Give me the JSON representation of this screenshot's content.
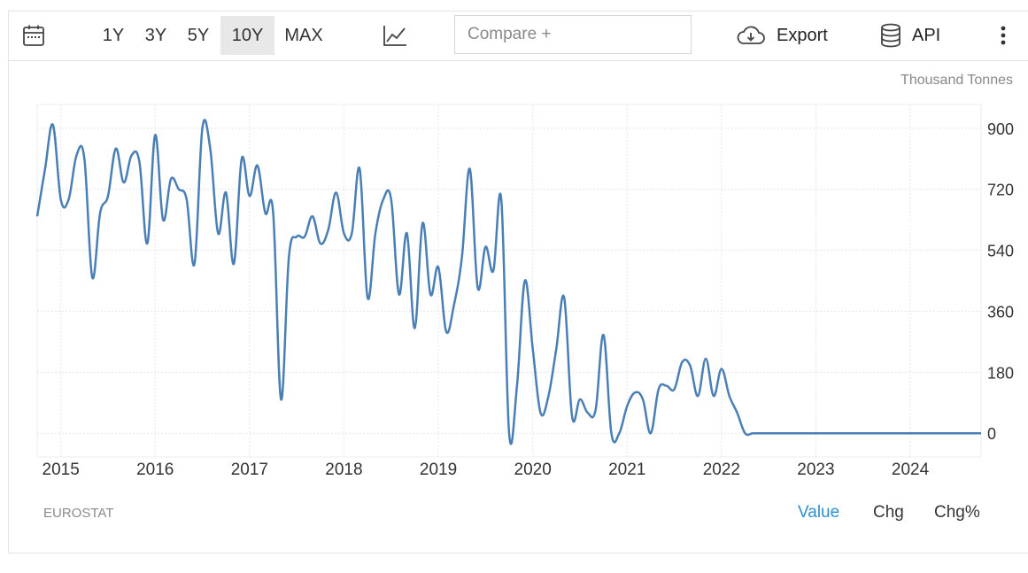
{
  "toolbar": {
    "calendar_icon": "calendar-icon",
    "ranges": [
      "1Y",
      "3Y",
      "5Y",
      "10Y",
      "MAX"
    ],
    "active_range": "10Y",
    "chart_type_icon": "line-chart-icon",
    "compare_placeholder": "Compare +",
    "export_label": "Export",
    "export_icon": "cloud-download-icon",
    "api_label": "API",
    "api_icon": "database-icon",
    "more_icon": "vertical-dots-icon"
  },
  "unit_label": "Thousand Tonnes",
  "source_label": "EUROSTAT",
  "modes": [
    "Value",
    "Chg",
    "Chg%"
  ],
  "active_mode": "Value",
  "colors": {
    "line": "#4a7fb5",
    "active_mode": "#2e8ece",
    "grid": "#e6e6e6"
  },
  "chart_data": {
    "type": "line",
    "title": "",
    "xlabel": "",
    "ylabel": "",
    "x_ticks": [
      "2015",
      "2016",
      "2017",
      "2018",
      "2019",
      "2020",
      "2021",
      "2022",
      "2023",
      "2024"
    ],
    "y_ticks": [
      0,
      180,
      360,
      540,
      720,
      900
    ],
    "ylim": [
      -70,
      970
    ],
    "xlim": [
      "2014-10",
      "2024-10"
    ],
    "grid": true,
    "legend": "none",
    "series": [
      {
        "x": [
          "2014-10",
          "2014-11",
          "2014-12",
          "2015-01",
          "2015-02",
          "2015-03",
          "2015-04",
          "2015-05",
          "2015-06",
          "2015-07",
          "2015-08",
          "2015-09",
          "2015-10",
          "2015-11",
          "2015-12",
          "2016-01",
          "2016-02",
          "2016-03",
          "2016-04",
          "2016-05",
          "2016-06",
          "2016-07",
          "2016-08",
          "2016-09",
          "2016-10",
          "2016-11",
          "2016-12",
          "2017-01",
          "2017-02",
          "2017-03",
          "2017-04",
          "2017-05",
          "2017-06",
          "2017-07",
          "2017-08",
          "2017-09",
          "2017-10",
          "2017-11",
          "2017-12",
          "2018-01",
          "2018-02",
          "2018-03",
          "2018-04",
          "2018-05",
          "2018-06",
          "2018-07",
          "2018-08",
          "2018-09",
          "2018-10",
          "2018-11",
          "2018-12",
          "2019-01",
          "2019-02",
          "2019-03",
          "2019-04",
          "2019-05",
          "2019-06",
          "2019-07",
          "2019-08",
          "2019-09",
          "2019-10",
          "2019-11",
          "2019-12",
          "2020-01",
          "2020-02",
          "2020-03",
          "2020-04",
          "2020-05",
          "2020-06",
          "2020-07",
          "2020-08",
          "2020-09",
          "2020-10",
          "2020-11",
          "2020-12",
          "2021-01",
          "2021-02",
          "2021-03",
          "2021-04",
          "2021-05",
          "2021-06",
          "2021-07",
          "2021-08",
          "2021-09",
          "2021-10",
          "2021-11",
          "2021-12",
          "2022-01",
          "2022-02",
          "2022-03",
          "2022-04",
          "2022-05",
          "2022-06",
          "2022-07",
          "2022-08",
          "2022-09",
          "2022-10",
          "2022-11",
          "2022-12",
          "2023-01",
          "2023-02",
          "2023-03",
          "2023-04",
          "2023-05",
          "2023-06",
          "2023-07",
          "2023-08",
          "2023-09",
          "2023-10",
          "2023-11",
          "2023-12",
          "2024-01",
          "2024-02",
          "2024-03",
          "2024-04",
          "2024-05",
          "2024-06",
          "2024-07",
          "2024-08",
          "2024-09",
          "2024-10"
        ],
        "values": [
          640,
          780,
          910,
          690,
          690,
          820,
          810,
          460,
          650,
          700,
          840,
          740,
          820,
          800,
          560,
          880,
          630,
          750,
          720,
          690,
          500,
          900,
          840,
          590,
          710,
          500,
          810,
          700,
          790,
          650,
          650,
          100,
          520,
          580,
          580,
          640,
          560,
          600,
          710,
          590,
          590,
          780,
          400,
          590,
          690,
          690,
          410,
          590,
          310,
          620,
          410,
          490,
          300,
          380,
          520,
          780,
          430,
          550,
          480,
          690,
          0,
          140,
          450,
          250,
          60,
          110,
          250,
          400,
          50,
          100,
          60,
          70,
          290,
          0,
          0,
          80,
          120,
          100,
          0,
          130,
          140,
          130,
          210,
          200,
          110,
          220,
          110,
          190,
          110,
          60,
          0,
          0,
          0,
          0,
          0,
          0,
          0,
          0,
          0,
          0,
          0,
          0,
          0,
          0,
          0,
          0,
          0,
          0,
          0,
          0,
          0,
          0,
          0,
          0,
          0,
          0,
          0,
          0,
          0,
          0,
          0
        ]
      }
    ]
  }
}
